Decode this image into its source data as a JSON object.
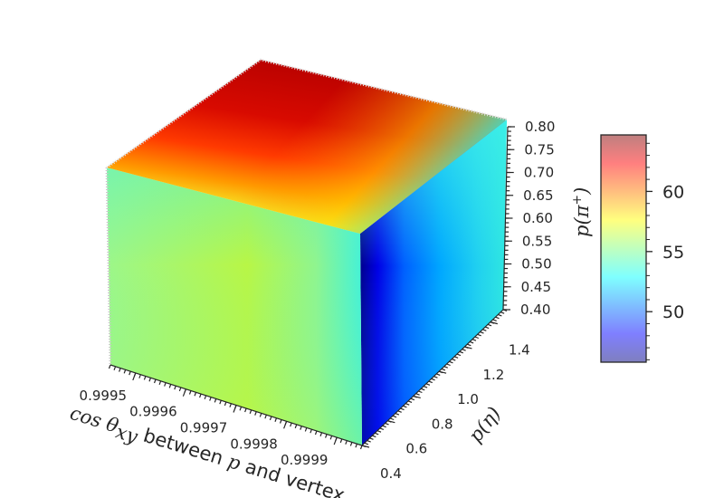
{
  "chart_data": {
    "type": "heatmap",
    "subtype": "3d-volume-scatter",
    "x_axis": {
      "label": "cos θxy between p and vertex",
      "ticks": [
        "0.9995",
        "0.9996",
        "0.9997",
        "0.9998",
        "0.9999"
      ],
      "range": [
        0.99945,
        0.99995
      ]
    },
    "y_axis": {
      "label": "p(η)",
      "ticks": [
        "0.4",
        "0.6",
        "0.8",
        "1.0",
        "1.2",
        "1.4"
      ],
      "range": [
        0.4,
        1.5
      ]
    },
    "z_axis": {
      "label": "p(π+)",
      "ticks": [
        "0.40",
        "0.45",
        "0.50",
        "0.55",
        "0.60",
        "0.65",
        "0.70",
        "0.75",
        "0.80"
      ],
      "range": [
        0.4,
        0.8
      ]
    },
    "colorbar": {
      "ticks": [
        "50",
        "55",
        "60"
      ],
      "range": [
        45.8,
        64.7
      ],
      "colormap": "jet",
      "alpha": 0.5
    },
    "faces": {
      "front": "mostly 56-58, yellow-green",
      "top": "red maximum ~64 at high p(η), decreasing to ~55 at low p(η)",
      "right": "deep blue minimum ~46 near cos θxy edge, rising to ~52 at high p(η)"
    },
    "grid": true
  }
}
